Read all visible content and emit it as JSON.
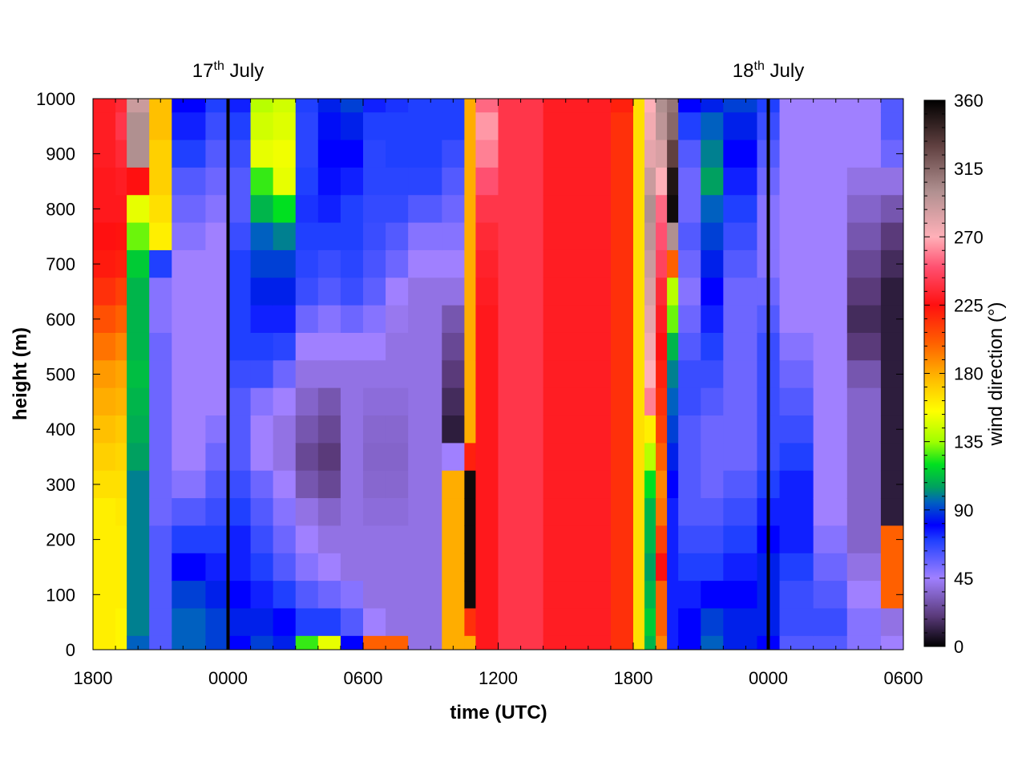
{
  "chart_data": {
    "type": "heatmap",
    "title": "",
    "xlabel": "time (UTC)",
    "ylabel": "height (m)",
    "colorbar_label": "wind direction (°)",
    "x_tick_labels": [
      "1800",
      "0000",
      "0600",
      "1200",
      "1800",
      "0000",
      "0600"
    ],
    "x_tick_hours": [
      0,
      6,
      12,
      18,
      24,
      30,
      36
    ],
    "x_range_hours": [
      0,
      36
    ],
    "y_ticks": [
      0,
      100,
      200,
      300,
      400,
      500,
      600,
      700,
      800,
      900,
      1000
    ],
    "ylim": [
      0,
      1000
    ],
    "colorbar_ticks": [
      0,
      45,
      90,
      135,
      180,
      225,
      270,
      315,
      360
    ],
    "colorbar_range": [
      0,
      360
    ],
    "date_markers": [
      {
        "day": "17",
        "sup": "th",
        "month": "July",
        "hour": 6
      },
      {
        "day": "18",
        "sup": "th",
        "month": "July",
        "hour": 30
      }
    ],
    "heights_m": [
      1000,
      950,
      900,
      850,
      800,
      750,
      700,
      650,
      600,
      550,
      500,
      450,
      400,
      350,
      300,
      250,
      200,
      150,
      100,
      50,
      0
    ],
    "direction_profiles_deg": [
      {
        "hour": 0.0,
        "values": [
          230,
          230,
          230,
          228,
          228,
          225,
          222,
          215,
          205,
          195,
          185,
          180,
          175,
          170,
          165,
          160,
          160,
          160,
          160,
          160,
          160
        ]
      },
      {
        "hour": 1.0,
        "values": [
          235,
          240,
          235,
          230,
          228,
          224,
          220,
          210,
          200,
          190,
          182,
          178,
          172,
          168,
          165,
          162,
          160,
          160,
          160,
          158,
          158
        ]
      },
      {
        "hour": 1.5,
        "values": [
          290,
          300,
          300,
          225,
          150,
          130,
          115,
          110,
          110,
          110,
          112,
          110,
          108,
          105,
          100,
          100,
          100,
          100,
          100,
          100,
          95
        ]
      },
      {
        "hour": 2.5,
        "values": [
          175,
          175,
          170,
          170,
          165,
          160,
          70,
          50,
          50,
          55,
          55,
          55,
          55,
          55,
          55,
          55,
          60,
          60,
          60,
          60,
          60
        ]
      },
      {
        "hour": 3.5,
        "values": [
          80,
          75,
          70,
          60,
          55,
          50,
          45,
          45,
          45,
          45,
          45,
          45,
          45,
          45,
          50,
          60,
          70,
          80,
          90,
          95,
          95
        ]
      },
      {
        "hour": 5.0,
        "values": [
          70,
          65,
          60,
          55,
          50,
          45,
          45,
          45,
          45,
          45,
          45,
          45,
          50,
          55,
          60,
          65,
          70,
          75,
          85,
          90,
          90
        ]
      },
      {
        "hour": 6.0,
        "values": [
          75,
          70,
          65,
          60,
          60,
          65,
          70,
          70,
          70,
          70,
          65,
          60,
          60,
          60,
          65,
          70,
          75,
          75,
          80,
          85,
          80
        ]
      },
      {
        "hour": 7.0,
        "values": [
          140,
          145,
          150,
          125,
          110,
          95,
          90,
          85,
          75,
          70,
          65,
          50,
          45,
          45,
          55,
          60,
          65,
          70,
          75,
          85,
          90
        ]
      },
      {
        "hour": 8.0,
        "values": [
          145,
          148,
          152,
          150,
          120,
          100,
          90,
          85,
          75,
          68,
          55,
          45,
          40,
          40,
          45,
          50,
          55,
          60,
          70,
          80,
          85
        ]
      },
      {
        "hour": 9.0,
        "values": [
          70,
          68,
          68,
          70,
          72,
          70,
          68,
          65,
          55,
          45,
          40,
          35,
          30,
          25,
          30,
          40,
          45,
          50,
          60,
          70,
          125
        ]
      },
      {
        "hour": 10.0,
        "values": [
          85,
          82,
          80,
          78,
          75,
          70,
          65,
          60,
          50,
          45,
          40,
          30,
          25,
          20,
          25,
          35,
          40,
          45,
          55,
          70,
          150
        ]
      },
      {
        "hour": 11.0,
        "values": [
          90,
          85,
          80,
          75,
          70,
          70,
          68,
          65,
          55,
          45,
          40,
          40,
          40,
          40,
          40,
          40,
          40,
          40,
          50,
          60,
          80
        ]
      },
      {
        "hour": 12.0,
        "values": [
          75,
          70,
          68,
          68,
          66,
          65,
          62,
          58,
          50,
          45,
          40,
          38,
          36,
          35,
          36,
          38,
          40,
          40,
          40,
          45,
          200
        ]
      },
      {
        "hour": 13.0,
        "values": [
          72,
          70,
          70,
          68,
          66,
          60,
          55,
          45,
          42,
          40,
          40,
          38,
          36,
          35,
          36,
          38,
          40,
          40,
          40,
          40,
          200
        ]
      },
      {
        "hour": 14.0,
        "values": [
          70,
          70,
          70,
          68,
          60,
          50,
          45,
          40,
          40,
          40,
          40,
          40,
          40,
          40,
          40,
          40,
          40,
          40,
          40,
          40,
          40
        ]
      },
      {
        "hour": 15.5,
        "values": [
          70,
          70,
          65,
          60,
          55,
          50,
          45,
          40,
          30,
          25,
          20,
          15,
          10,
          45,
          180,
          180,
          180,
          180,
          180,
          180,
          180
        ]
      },
      {
        "hour": 16.5,
        "values": [
          180,
          180,
          180,
          180,
          180,
          180,
          180,
          180,
          180,
          180,
          180,
          180,
          180,
          220,
          355,
          355,
          355,
          355,
          355,
          215,
          180
        ]
      },
      {
        "hour": 17.0,
        "values": [
          255,
          265,
          260,
          250,
          240,
          235,
          232,
          230,
          228,
          228,
          228,
          228,
          228,
          228,
          228,
          228,
          228,
          228,
          228,
          228,
          228
        ]
      },
      {
        "hour": 18.0,
        "values": [
          240,
          240,
          240,
          240,
          240,
          240,
          240,
          240,
          240,
          240,
          240,
          240,
          240,
          240,
          240,
          240,
          240,
          240,
          240,
          240,
          240
        ]
      },
      {
        "hour": 20.0,
        "values": [
          230,
          230,
          230,
          230,
          230,
          230,
          230,
          230,
          230,
          230,
          230,
          230,
          230,
          230,
          230,
          230,
          230,
          230,
          230,
          230,
          230
        ]
      },
      {
        "hour": 23.0,
        "values": [
          220,
          215,
          215,
          215,
          215,
          215,
          215,
          215,
          215,
          215,
          215,
          215,
          215,
          215,
          215,
          215,
          215,
          215,
          215,
          215,
          215
        ]
      },
      {
        "hour": 24.0,
        "values": [
          165,
          165,
          165,
          165,
          165,
          165,
          165,
          165,
          165,
          165,
          165,
          165,
          165,
          165,
          165,
          165,
          165,
          165,
          165,
          165,
          165
        ]
      },
      {
        "hour": 24.5,
        "values": [
          270,
          275,
          280,
          290,
          300,
          295,
          290,
          285,
          280,
          275,
          270,
          260,
          160,
          140,
          120,
          110,
          110,
          105,
          110,
          115,
          110
        ]
      },
      {
        "hour": 25.0,
        "values": [
          300,
          295,
          285,
          270,
          255,
          250,
          245,
          235,
          230,
          225,
          220,
          215,
          210,
          200,
          190,
          195,
          210,
          225,
          200,
          200,
          190
        ]
      },
      {
        "hour": 25.5,
        "values": [
          310,
          315,
          330,
          350,
          355,
          300,
          200,
          140,
          130,
          110,
          100,
          95,
          90,
          85,
          80,
          75,
          75,
          75,
          75,
          75,
          75
        ]
      },
      {
        "hour": 26.0,
        "values": [
          80,
          70,
          60,
          55,
          55,
          60,
          55,
          50,
          55,
          60,
          65,
          65,
          60,
          60,
          60,
          60,
          65,
          70,
          75,
          80,
          80
        ]
      },
      {
        "hour": 27.0,
        "values": [
          85,
          95,
          100,
          105,
          95,
          90,
          85,
          80,
          75,
          70,
          65,
          60,
          55,
          55,
          55,
          60,
          65,
          70,
          80,
          90,
          95
        ]
      },
      {
        "hour": 28.0,
        "values": [
          90,
          85,
          80,
          75,
          70,
          65,
          60,
          55,
          55,
          55,
          55,
          55,
          55,
          55,
          60,
          65,
          70,
          75,
          80,
          85,
          85
        ]
      },
      {
        "hour": 29.5,
        "values": [
          70,
          65,
          60,
          55,
          50,
          50,
          50,
          55,
          60,
          65,
          65,
          65,
          65,
          65,
          70,
          75,
          80,
          85,
          85,
          85,
          80
        ]
      },
      {
        "hour": 30.5,
        "values": [
          45,
          45,
          45,
          45,
          45,
          45,
          45,
          45,
          45,
          50,
          55,
          60,
          65,
          70,
          75,
          75,
          75,
          70,
          65,
          65,
          60
        ]
      },
      {
        "hour": 32.0,
        "values": [
          45,
          45,
          45,
          45,
          45,
          45,
          45,
          45,
          45,
          45,
          45,
          45,
          45,
          45,
          45,
          45,
          50,
          55,
          60,
          65,
          60
        ]
      },
      {
        "hour": 33.5,
        "values": [
          45,
          45,
          45,
          40,
          35,
          30,
          25,
          20,
          15,
          20,
          30,
          35,
          35,
          35,
          35,
          35,
          35,
          40,
          45,
          50,
          50
        ]
      },
      {
        "hour": 35.0,
        "values": [
          60,
          60,
          55,
          40,
          30,
          20,
          15,
          10,
          10,
          10,
          10,
          10,
          10,
          10,
          10,
          10,
          200,
          200,
          200,
          40,
          45
        ]
      },
      {
        "hour": 36.0,
        "values": [
          90,
          80,
          70,
          60,
          50,
          40,
          30,
          20,
          15,
          10,
          10,
          10,
          10,
          10,
          10,
          10,
          20,
          30,
          35,
          40,
          45
        ]
      }
    ],
    "colormap_stops": [
      {
        "deg": 0,
        "color": "#000000"
      },
      {
        "deg": 20,
        "color": "#5a3a7a"
      },
      {
        "deg": 45,
        "color": "#a080ff"
      },
      {
        "deg": 70,
        "color": "#2040ff"
      },
      {
        "deg": 80,
        "color": "#0000ff"
      },
      {
        "deg": 95,
        "color": "#0060c0"
      },
      {
        "deg": 105,
        "color": "#00a060"
      },
      {
        "deg": 120,
        "color": "#00e020"
      },
      {
        "deg": 135,
        "color": "#a0ff00"
      },
      {
        "deg": 155,
        "color": "#ffff00"
      },
      {
        "deg": 175,
        "color": "#ffc000"
      },
      {
        "deg": 200,
        "color": "#ff6000"
      },
      {
        "deg": 225,
        "color": "#ff1010"
      },
      {
        "deg": 250,
        "color": "#ff5070"
      },
      {
        "deg": 270,
        "color": "#ffb0b8"
      },
      {
        "deg": 300,
        "color": "#b09090"
      },
      {
        "deg": 330,
        "color": "#604040"
      },
      {
        "deg": 360,
        "color": "#000000"
      }
    ]
  }
}
